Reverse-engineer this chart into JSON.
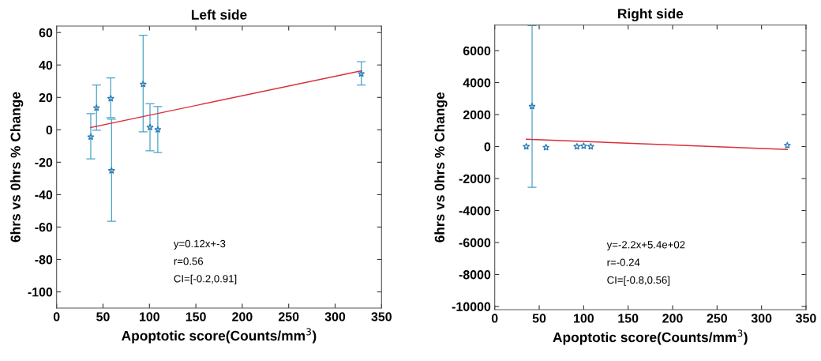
{
  "chart_data": [
    {
      "type": "scatter",
      "title": "Left side",
      "xlabel": "Apoptotic score(Counts/mm$^{3}$)",
      "ylabel": "6hrs vs 0hrs % Change",
      "grid": false,
      "legend": false,
      "xlim": [
        0,
        350
      ],
      "xticks": [
        0,
        50,
        100,
        150,
        200,
        250,
        300,
        350
      ],
      "ylim": [
        -110,
        64
      ],
      "yticks": [
        -100,
        -80,
        -60,
        -40,
        -20,
        0,
        20,
        40,
        60
      ],
      "series": [
        {
          "marker": "star",
          "color": "#2b7bb5",
          "x": [
            36.8,
            43,
            58.3,
            59.2,
            93.2,
            100.6,
            109,
            328.2
          ],
          "values": [
            -4.4,
            13.5,
            19.3,
            -25.2,
            28.1,
            1.5,
            0.1,
            34.6
          ],
          "errors": [
            [
              -18,
              10
            ],
            [
              -0.3,
              27.6
            ],
            [
              7.5,
              32
            ],
            [
              -56.4,
              6.5
            ],
            [
              -1.3,
              58.3
            ],
            [
              -13,
              16
            ],
            [
              -14,
              14.4
            ],
            [
              27.6,
              42
            ]
          ]
        },
        {
          "type": "line",
          "color": "#d9303a",
          "x": [
            36.8,
            328.2
          ],
          "values": [
            1.4,
            36.4
          ]
        }
      ],
      "annotations": [
        "y=0.12x+-3",
        "r=0.56",
        "CI=[-0.2,0.91]"
      ]
    },
    {
      "type": "scatter",
      "title": "Right side",
      "xlabel": "Apoptotic score(Counts/mm$^{3}$)",
      "ylabel": "6hrs vs 0hrs % Change",
      "grid": false,
      "legend": false,
      "xlim": [
        0,
        350
      ],
      "xticks": [
        0,
        50,
        100,
        150,
        200,
        250,
        300,
        350
      ],
      "ylim": [
        -10200,
        7600
      ],
      "yticks": [
        -10000,
        -8000,
        -6000,
        -4000,
        -2000,
        0,
        2000,
        4000,
        6000
      ],
      "series": [
        {
          "marker": "star",
          "color": "#2b7bb5",
          "x": [
            35.5,
            42,
            57.7,
            92.4,
            100,
            108,
            329
          ],
          "values": [
            0,
            2510,
            -50,
            0,
            30,
            0,
            70
          ],
          "errors": [
            null,
            [
              -2550,
              7570
            ],
            null,
            null,
            null,
            null,
            null
          ]
        },
        {
          "type": "line",
          "color": "#d9303a",
          "x": [
            35.5,
            329
          ],
          "values": [
            460,
            -180
          ]
        }
      ],
      "annotations": [
        "y=-2.2x+5.4e+02",
        "r=-0.24",
        "CI=[-0.8,0.56]"
      ]
    }
  ]
}
